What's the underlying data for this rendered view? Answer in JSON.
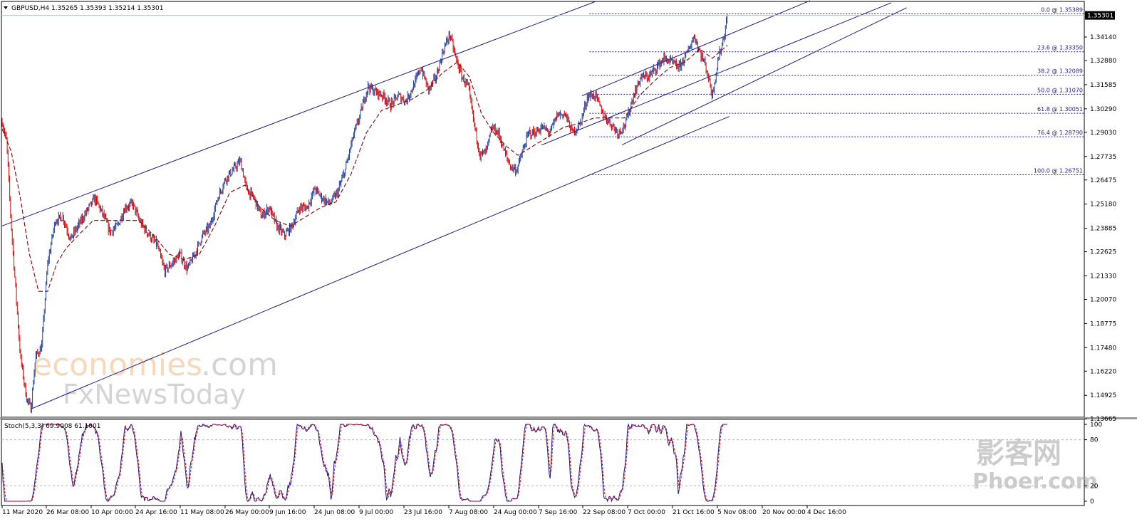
{
  "chart_data": {
    "type": "candlestick",
    "symbol_header": "GBPUSD,H4  1.35265 1.35393 1.35214 1.35301",
    "current_price": "1.35301",
    "price_axis": {
      "ticks": [
        "1.34140",
        "1.32880",
        "1.31585",
        "1.30290",
        "1.29030",
        "1.27735",
        "1.26475",
        "1.25180",
        "1.23885",
        "1.22625",
        "1.21330",
        "1.20070",
        "1.18775",
        "1.17480",
        "1.16220",
        "1.14925",
        "1.13665"
      ],
      "range": [
        1.1375,
        1.3605
      ]
    },
    "time_axis": [
      "11 Mar 2020",
      "26 Mar 08:00",
      "10 Apr 00:00",
      "24 Apr 16:00",
      "11 May 08:00",
      "26 May 00:00",
      "9 Jun 16:00",
      "24 Jun 08:00",
      "9 Jul 00:00",
      "23 Jul 16:00",
      "7 Aug 08:00",
      "24 Aug 00:00",
      "7 Sep 16:00",
      "22 Sep 08:00",
      "7 Oct 00:00",
      "21 Oct 16:00",
      "5 Nov 08:00",
      "20 Nov 00:00",
      "4 Dec 16:00"
    ],
    "price_path": [
      {
        "x": 0,
        "y": 1.296
      },
      {
        "x": 0.3,
        "y": 1.285
      },
      {
        "x": 0.6,
        "y": 1.24
      },
      {
        "x": 0.9,
        "y": 1.205
      },
      {
        "x": 1.2,
        "y": 1.17
      },
      {
        "x": 1.6,
        "y": 1.148
      },
      {
        "x": 1.9,
        "y": 1.142
      },
      {
        "x": 2.2,
        "y": 1.17
      },
      {
        "x": 2.6,
        "y": 1.175
      },
      {
        "x": 3.0,
        "y": 1.22
      },
      {
        "x": 3.5,
        "y": 1.243
      },
      {
        "x": 4.0,
        "y": 1.245
      },
      {
        "x": 4.5,
        "y": 1.233
      },
      {
        "x": 5.0,
        "y": 1.24
      },
      {
        "x": 5.5,
        "y": 1.247
      },
      {
        "x": 6.1,
        "y": 1.255
      },
      {
        "x": 6.6,
        "y": 1.247
      },
      {
        "x": 7.1,
        "y": 1.237
      },
      {
        "x": 7.6,
        "y": 1.24
      },
      {
        "x": 8.1,
        "y": 1.25
      },
      {
        "x": 8.6,
        "y": 1.252
      },
      {
        "x": 9.1,
        "y": 1.242
      },
      {
        "x": 9.7,
        "y": 1.235
      },
      {
        "x": 10.2,
        "y": 1.23
      },
      {
        "x": 10.7,
        "y": 1.216
      },
      {
        "x": 11.2,
        "y": 1.22
      },
      {
        "x": 11.7,
        "y": 1.225
      },
      {
        "x": 12.2,
        "y": 1.217
      },
      {
        "x": 12.7,
        "y": 1.225
      },
      {
        "x": 13.2,
        "y": 1.235
      },
      {
        "x": 13.7,
        "y": 1.24
      },
      {
        "x": 14.2,
        "y": 1.255
      },
      {
        "x": 14.7,
        "y": 1.265
      },
      {
        "x": 15.2,
        "y": 1.27
      },
      {
        "x": 15.7,
        "y": 1.275
      },
      {
        "x": 16.1,
        "y": 1.26
      },
      {
        "x": 16.6,
        "y": 1.255
      },
      {
        "x": 17.1,
        "y": 1.245
      },
      {
        "x": 17.6,
        "y": 1.25
      },
      {
        "x": 18.1,
        "y": 1.24
      },
      {
        "x": 18.6,
        "y": 1.235
      },
      {
        "x": 19.1,
        "y": 1.24
      },
      {
        "x": 19.6,
        "y": 1.25
      },
      {
        "x": 20.1,
        "y": 1.25
      },
      {
        "x": 20.6,
        "y": 1.26
      },
      {
        "x": 21.1,
        "y": 1.255
      },
      {
        "x": 21.6,
        "y": 1.252
      },
      {
        "x": 22.1,
        "y": 1.258
      },
      {
        "x": 22.6,
        "y": 1.27
      },
      {
        "x": 23.1,
        "y": 1.287
      },
      {
        "x": 23.6,
        "y": 1.3
      },
      {
        "x": 24.1,
        "y": 1.315
      },
      {
        "x": 24.6,
        "y": 1.312
      },
      {
        "x": 25.1,
        "y": 1.31
      },
      {
        "x": 25.6,
        "y": 1.305
      },
      {
        "x": 26.1,
        "y": 1.31
      },
      {
        "x": 26.6,
        "y": 1.307
      },
      {
        "x": 27.1,
        "y": 1.315
      },
      {
        "x": 27.6,
        "y": 1.325
      },
      {
        "x": 28.1,
        "y": 1.313
      },
      {
        "x": 28.6,
        "y": 1.32
      },
      {
        "x": 29.1,
        "y": 1.335
      },
      {
        "x": 29.5,
        "y": 1.343
      },
      {
        "x": 29.9,
        "y": 1.33
      },
      {
        "x": 30.3,
        "y": 1.32
      },
      {
        "x": 30.7,
        "y": 1.315
      },
      {
        "x": 31.1,
        "y": 1.295
      },
      {
        "x": 31.5,
        "y": 1.278
      },
      {
        "x": 31.9,
        "y": 1.28
      },
      {
        "x": 32.3,
        "y": 1.293
      },
      {
        "x": 32.7,
        "y": 1.29
      },
      {
        "x": 33.1,
        "y": 1.28
      },
      {
        "x": 33.5,
        "y": 1.272
      },
      {
        "x": 33.9,
        "y": 1.27
      },
      {
        "x": 34.3,
        "y": 1.28
      },
      {
        "x": 34.7,
        "y": 1.29
      },
      {
        "x": 35.1,
        "y": 1.29
      },
      {
        "x": 35.6,
        "y": 1.293
      },
      {
        "x": 36.1,
        "y": 1.29
      },
      {
        "x": 36.6,
        "y": 1.3
      },
      {
        "x": 37.1,
        "y": 1.3
      },
      {
        "x": 37.6,
        "y": 1.29
      },
      {
        "x": 38.1,
        "y": 1.295
      },
      {
        "x": 38.6,
        "y": 1.31
      },
      {
        "x": 39.1,
        "y": 1.31
      },
      {
        "x": 39.6,
        "y": 1.3
      },
      {
        "x": 40.1,
        "y": 1.295
      },
      {
        "x": 40.6,
        "y": 1.29
      },
      {
        "x": 41.1,
        "y": 1.295
      },
      {
        "x": 41.6,
        "y": 1.31
      },
      {
        "x": 42.1,
        "y": 1.32
      },
      {
        "x": 42.6,
        "y": 1.32
      },
      {
        "x": 43.1,
        "y": 1.325
      },
      {
        "x": 43.6,
        "y": 1.33
      },
      {
        "x": 44.1,
        "y": 1.328
      },
      {
        "x": 44.6,
        "y": 1.325
      },
      {
        "x": 45.1,
        "y": 1.332
      },
      {
        "x": 45.6,
        "y": 1.342
      },
      {
        "x": 46.0,
        "y": 1.333
      },
      {
        "x": 46.4,
        "y": 1.325
      },
      {
        "x": 46.8,
        "y": 1.31
      },
      {
        "x": 47.2,
        "y": 1.33
      },
      {
        "x": 47.6,
        "y": 1.343
      },
      {
        "x": 47.8,
        "y": 1.353
      }
    ],
    "moving_average": [
      {
        "x": 0,
        "y": 1.292
      },
      {
        "x": 0.6,
        "y": 1.28
      },
      {
        "x": 1.2,
        "y": 1.255
      },
      {
        "x": 1.8,
        "y": 1.225
      },
      {
        "x": 2.4,
        "y": 1.205
      },
      {
        "x": 3.0,
        "y": 1.205
      },
      {
        "x": 3.6,
        "y": 1.22
      },
      {
        "x": 4.2,
        "y": 1.228
      },
      {
        "x": 5.0,
        "y": 1.235
      },
      {
        "x": 6.0,
        "y": 1.243
      },
      {
        "x": 7.0,
        "y": 1.243
      },
      {
        "x": 8.0,
        "y": 1.243
      },
      {
        "x": 9.0,
        "y": 1.243
      },
      {
        "x": 10.0,
        "y": 1.235
      },
      {
        "x": 11.0,
        "y": 1.225
      },
      {
        "x": 12.0,
        "y": 1.222
      },
      {
        "x": 13.0,
        "y": 1.225
      },
      {
        "x": 14.0,
        "y": 1.24
      },
      {
        "x": 15.0,
        "y": 1.258
      },
      {
        "x": 16.0,
        "y": 1.262
      },
      {
        "x": 17.0,
        "y": 1.25
      },
      {
        "x": 18.0,
        "y": 1.243
      },
      {
        "x": 19.0,
        "y": 1.24
      },
      {
        "x": 20.0,
        "y": 1.245
      },
      {
        "x": 21.0,
        "y": 1.25
      },
      {
        "x": 22.0,
        "y": 1.253
      },
      {
        "x": 23.0,
        "y": 1.268
      },
      {
        "x": 24.0,
        "y": 1.29
      },
      {
        "x": 25.0,
        "y": 1.302
      },
      {
        "x": 26.0,
        "y": 1.305
      },
      {
        "x": 27.0,
        "y": 1.308
      },
      {
        "x": 28.0,
        "y": 1.313
      },
      {
        "x": 29.0,
        "y": 1.322
      },
      {
        "x": 30.0,
        "y": 1.328
      },
      {
        "x": 30.8,
        "y": 1.32
      },
      {
        "x": 31.6,
        "y": 1.3
      },
      {
        "x": 32.4,
        "y": 1.29
      },
      {
        "x": 33.2,
        "y": 1.283
      },
      {
        "x": 34.0,
        "y": 1.278
      },
      {
        "x": 35.0,
        "y": 1.283
      },
      {
        "x": 36.0,
        "y": 1.288
      },
      {
        "x": 37.0,
        "y": 1.293
      },
      {
        "x": 38.0,
        "y": 1.295
      },
      {
        "x": 39.0,
        "y": 1.298
      },
      {
        "x": 40.0,
        "y": 1.298
      },
      {
        "x": 41.0,
        "y": 1.298
      },
      {
        "x": 42.0,
        "y": 1.31
      },
      {
        "x": 43.0,
        "y": 1.318
      },
      {
        "x": 44.0,
        "y": 1.325
      },
      {
        "x": 45.0,
        "y": 1.328
      },
      {
        "x": 46.0,
        "y": 1.335
      },
      {
        "x": 46.8,
        "y": 1.33
      },
      {
        "x": 47.8,
        "y": 1.337
      }
    ],
    "fibonacci_levels": [
      {
        "label": "0.0 @ 1.35389",
        "price": 1.35389
      },
      {
        "label": "23.6 @ 1.33350",
        "price": 1.3335
      },
      {
        "label": "38.2 @ 1.32089",
        "price": 1.32089
      },
      {
        "label": "50.0 @ 1.31070",
        "price": 1.3107
      },
      {
        "label": "61.8 @ 1.30051",
        "price": 1.30051
      },
      {
        "label": "76.4 @ 1.28790",
        "price": 1.2879
      },
      {
        "label": "100.0 @ 1.26751",
        "price": 1.26751
      }
    ],
    "trendlines": [
      {
        "x1": 0,
        "y1": 1.2401,
        "x2": 39.06,
        "y2": 1.3603
      },
      {
        "x1": 1.89,
        "y1": 1.1419,
        "x2": 47.92,
        "y2": 1.2988
      },
      {
        "x1": 35.55,
        "y1": 1.2835,
        "x2": 58.6,
        "y2": 1.3598
      },
      {
        "x1": 38.21,
        "y1": 1.3099,
        "x2": 53.24,
        "y2": 1.3609
      },
      {
        "x1": 40.85,
        "y1": 1.2836,
        "x2": 59.61,
        "y2": 1.3571
      }
    ],
    "oscillator": {
      "label": "Stoch(5,3,3) 69.9008 61.1001",
      "levels": [
        "100",
        "80",
        "20",
        "0"
      ],
      "range": [
        0,
        100
      ]
    }
  },
  "watermarks": {
    "brand_a_orange": "economies",
    "brand_a_grey": ".com",
    "brand_b": "FxNewsToday",
    "brand_c_cn": "影客网",
    "brand_c_en": "Phoer.com"
  },
  "colors": {
    "bull": "#1f3f9f",
    "bear": "#e00000",
    "trendline": "#1c1c8c",
    "fib": "#1c1c8c",
    "ma": "#8b0000",
    "stoch_main": "#1c1c8c",
    "stoch_signal": "#e00000"
  }
}
